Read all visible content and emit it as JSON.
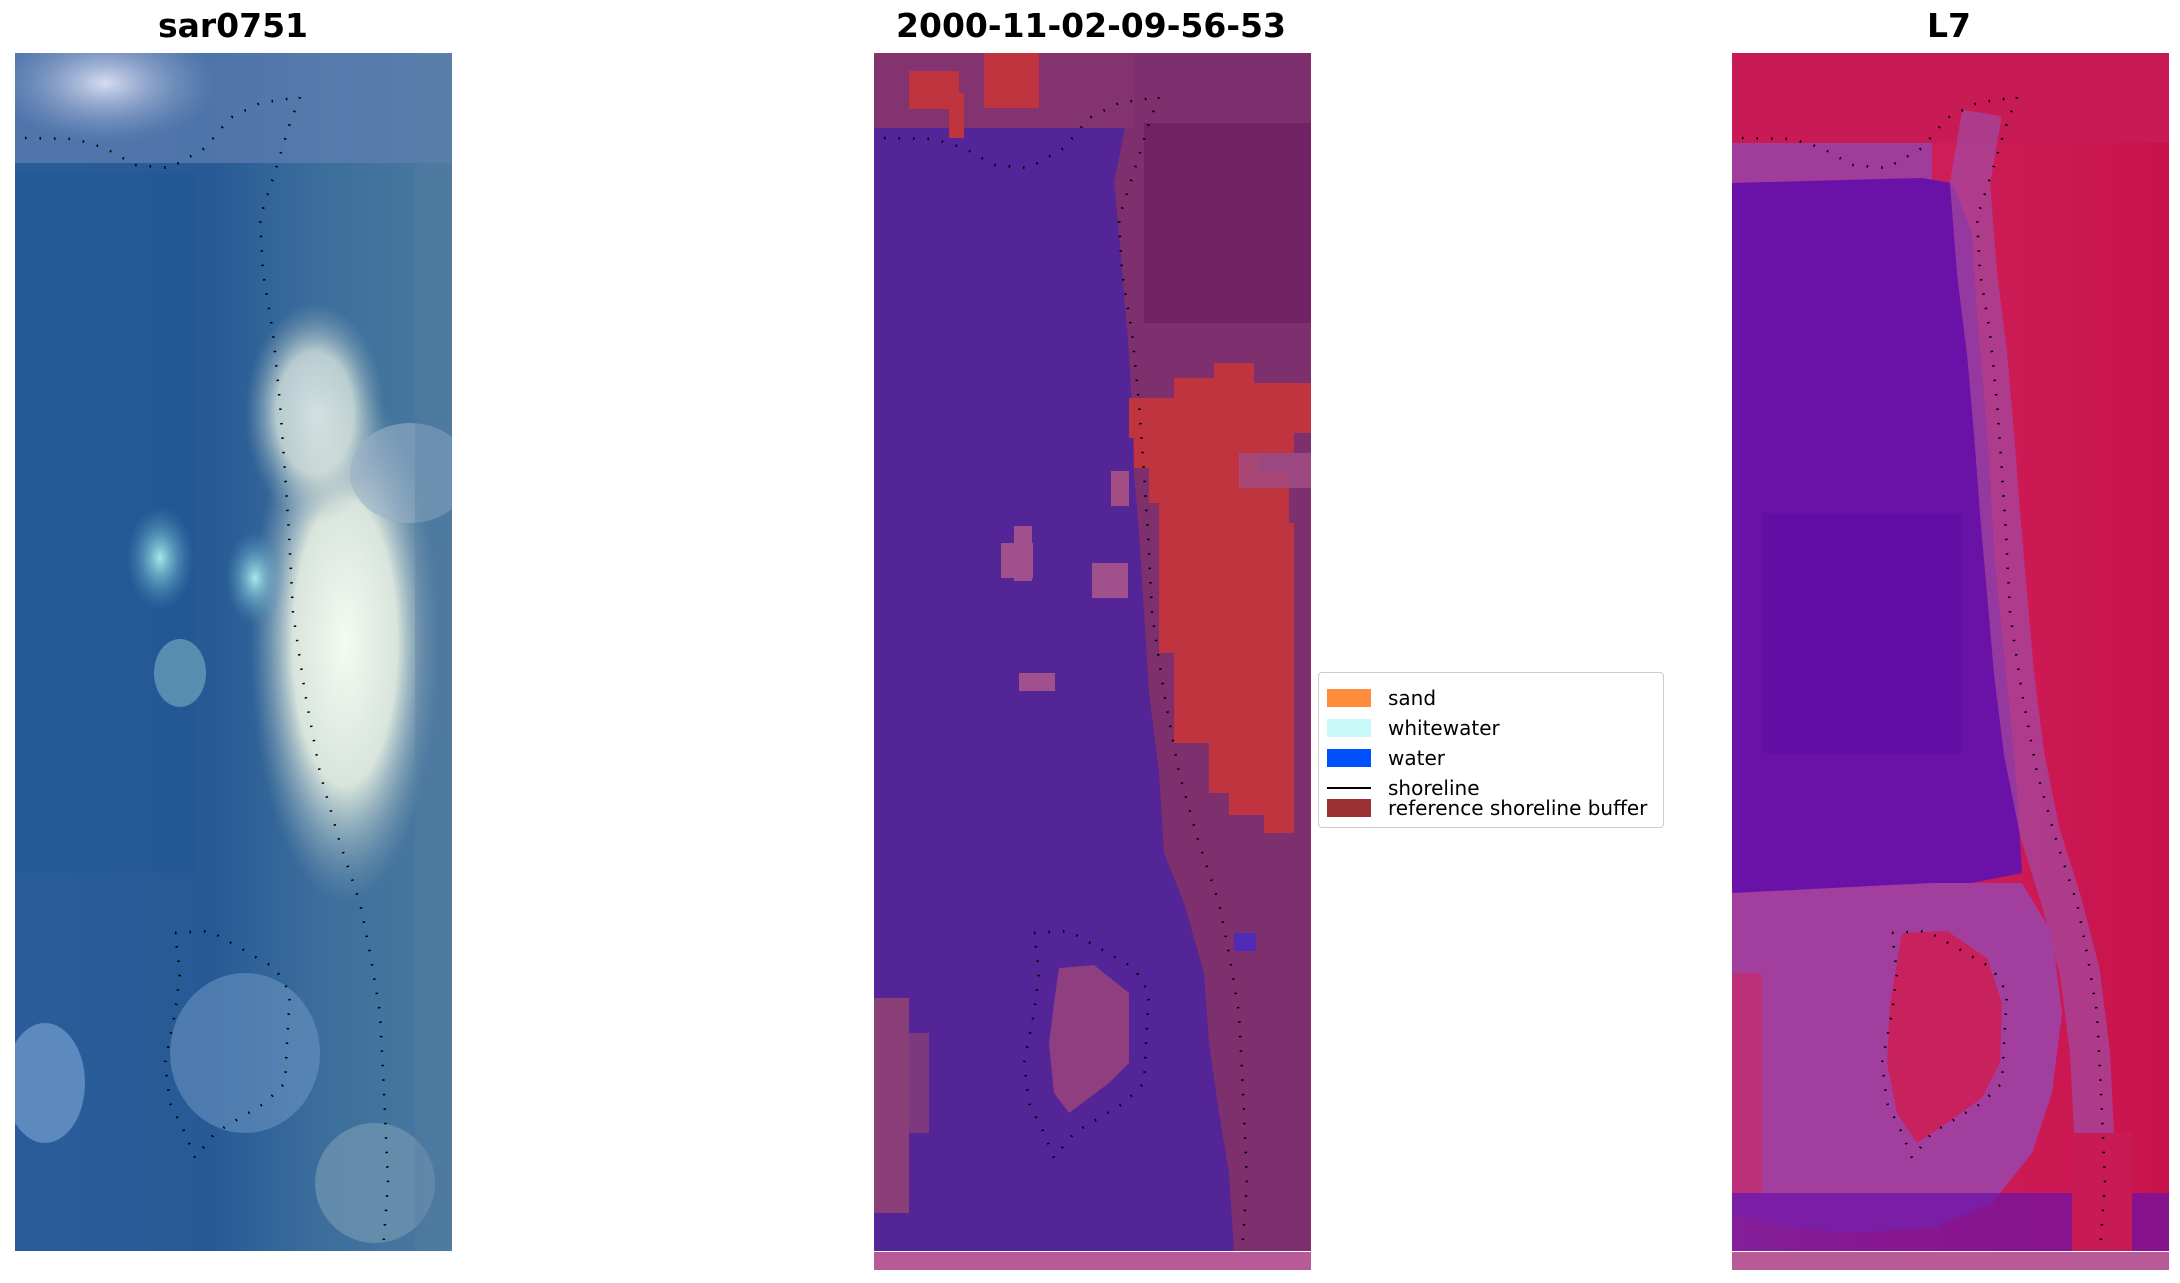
{
  "titles": {
    "panel1": "sar0751",
    "panel2": "2000-11-02-09-56-53",
    "panel3": "L7"
  },
  "legend": {
    "items": [
      {
        "label": "sand",
        "color": "#ff8c3c",
        "kind": "patch"
      },
      {
        "label": "whitewater",
        "color": "#c8fafa",
        "kind": "patch"
      },
      {
        "label": "water",
        "color": "#0050ff",
        "kind": "patch"
      },
      {
        "label": "shoreline",
        "color": "#000000",
        "kind": "line"
      },
      {
        "label": "reference shoreline buffer",
        "color": "#9b3035",
        "kind": "patch"
      }
    ]
  },
  "colors": {
    "rgb_water": "#2a5a98",
    "rgb_surf": "#e8f0e8",
    "classified_water": "#532596",
    "classified_land": "#8a3a72",
    "classified_buffer": "#c0343f",
    "index_land": "#c9184f",
    "index_water": "#6a10a8",
    "bottom_strip": "#b95a98"
  }
}
